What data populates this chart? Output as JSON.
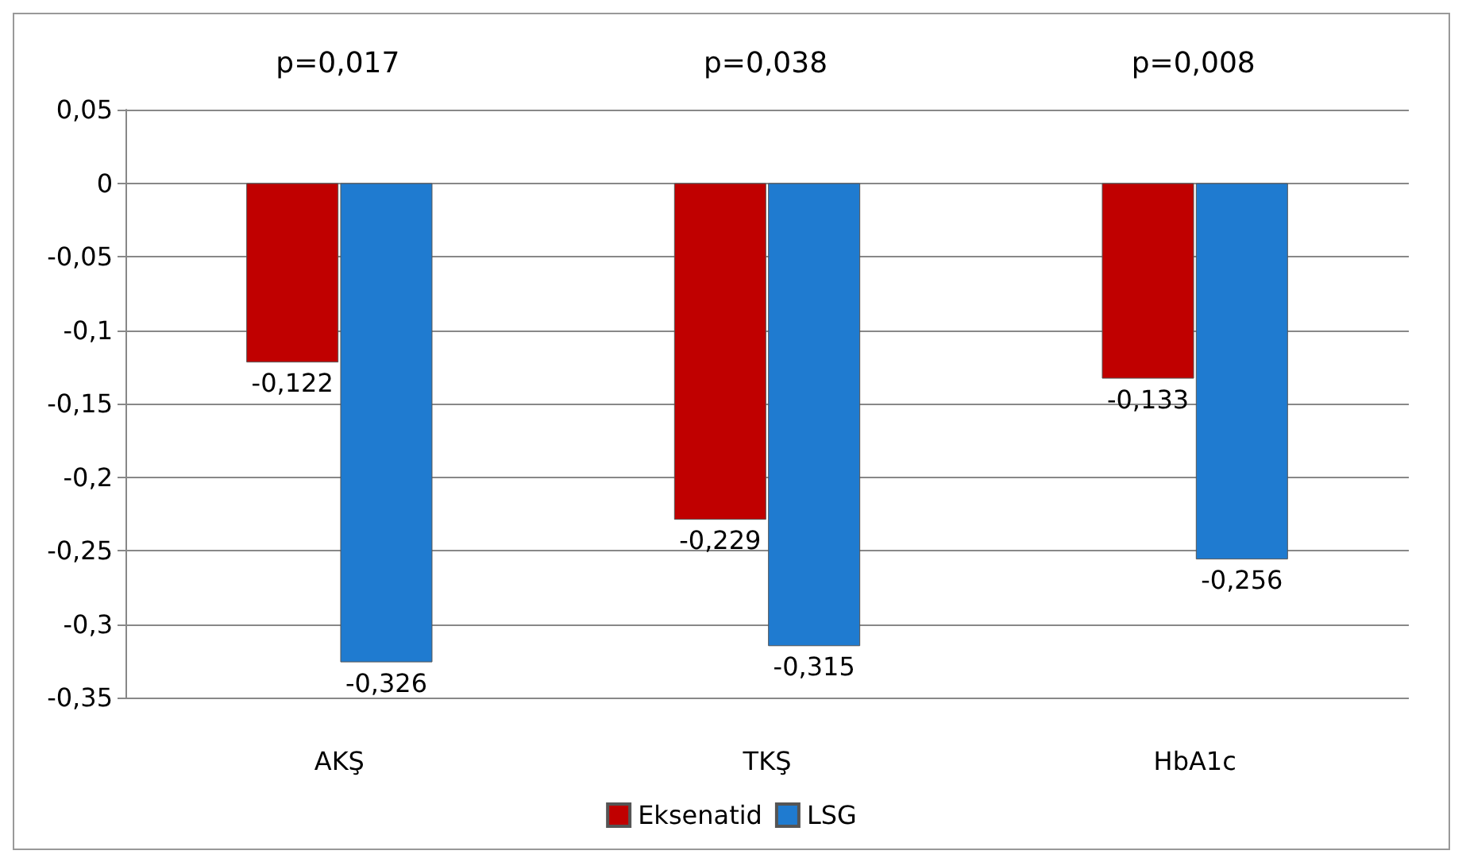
{
  "chart_data": {
    "type": "bar",
    "categories": [
      "AKŞ",
      "TKŞ",
      "HbA1c"
    ],
    "series": [
      {
        "name": "Eksenatid",
        "color": "#c00000",
        "values": [
          -0.122,
          -0.229,
          -0.133
        ],
        "value_labels": [
          "-0,122",
          "-0,229",
          "-0,133"
        ]
      },
      {
        "name": "LSG",
        "color": "#1f7bd0",
        "values": [
          -0.326,
          -0.315,
          -0.256
        ],
        "value_labels": [
          "-0,326",
          "-0,315",
          "-0,256"
        ]
      }
    ],
    "ylim": [
      -0.35,
      0.05
    ],
    "yticks": [
      {
        "value": 0.05,
        "label": "0,05"
      },
      {
        "value": 0,
        "label": "0"
      },
      {
        "value": -0.05,
        "label": "-0,05"
      },
      {
        "value": -0.1,
        "label": "-0,1"
      },
      {
        "value": -0.15,
        "label": "-0,15"
      },
      {
        "value": -0.2,
        "label": "-0,2"
      },
      {
        "value": -0.25,
        "label": "-0,25"
      },
      {
        "value": -0.3,
        "label": "-0,3"
      },
      {
        "value": -0.35,
        "label": "-0,35"
      }
    ],
    "grid": "y",
    "legend": "bottom",
    "annotations": [
      "p=0,017",
      "p=0,038",
      "p=0,008"
    ]
  }
}
